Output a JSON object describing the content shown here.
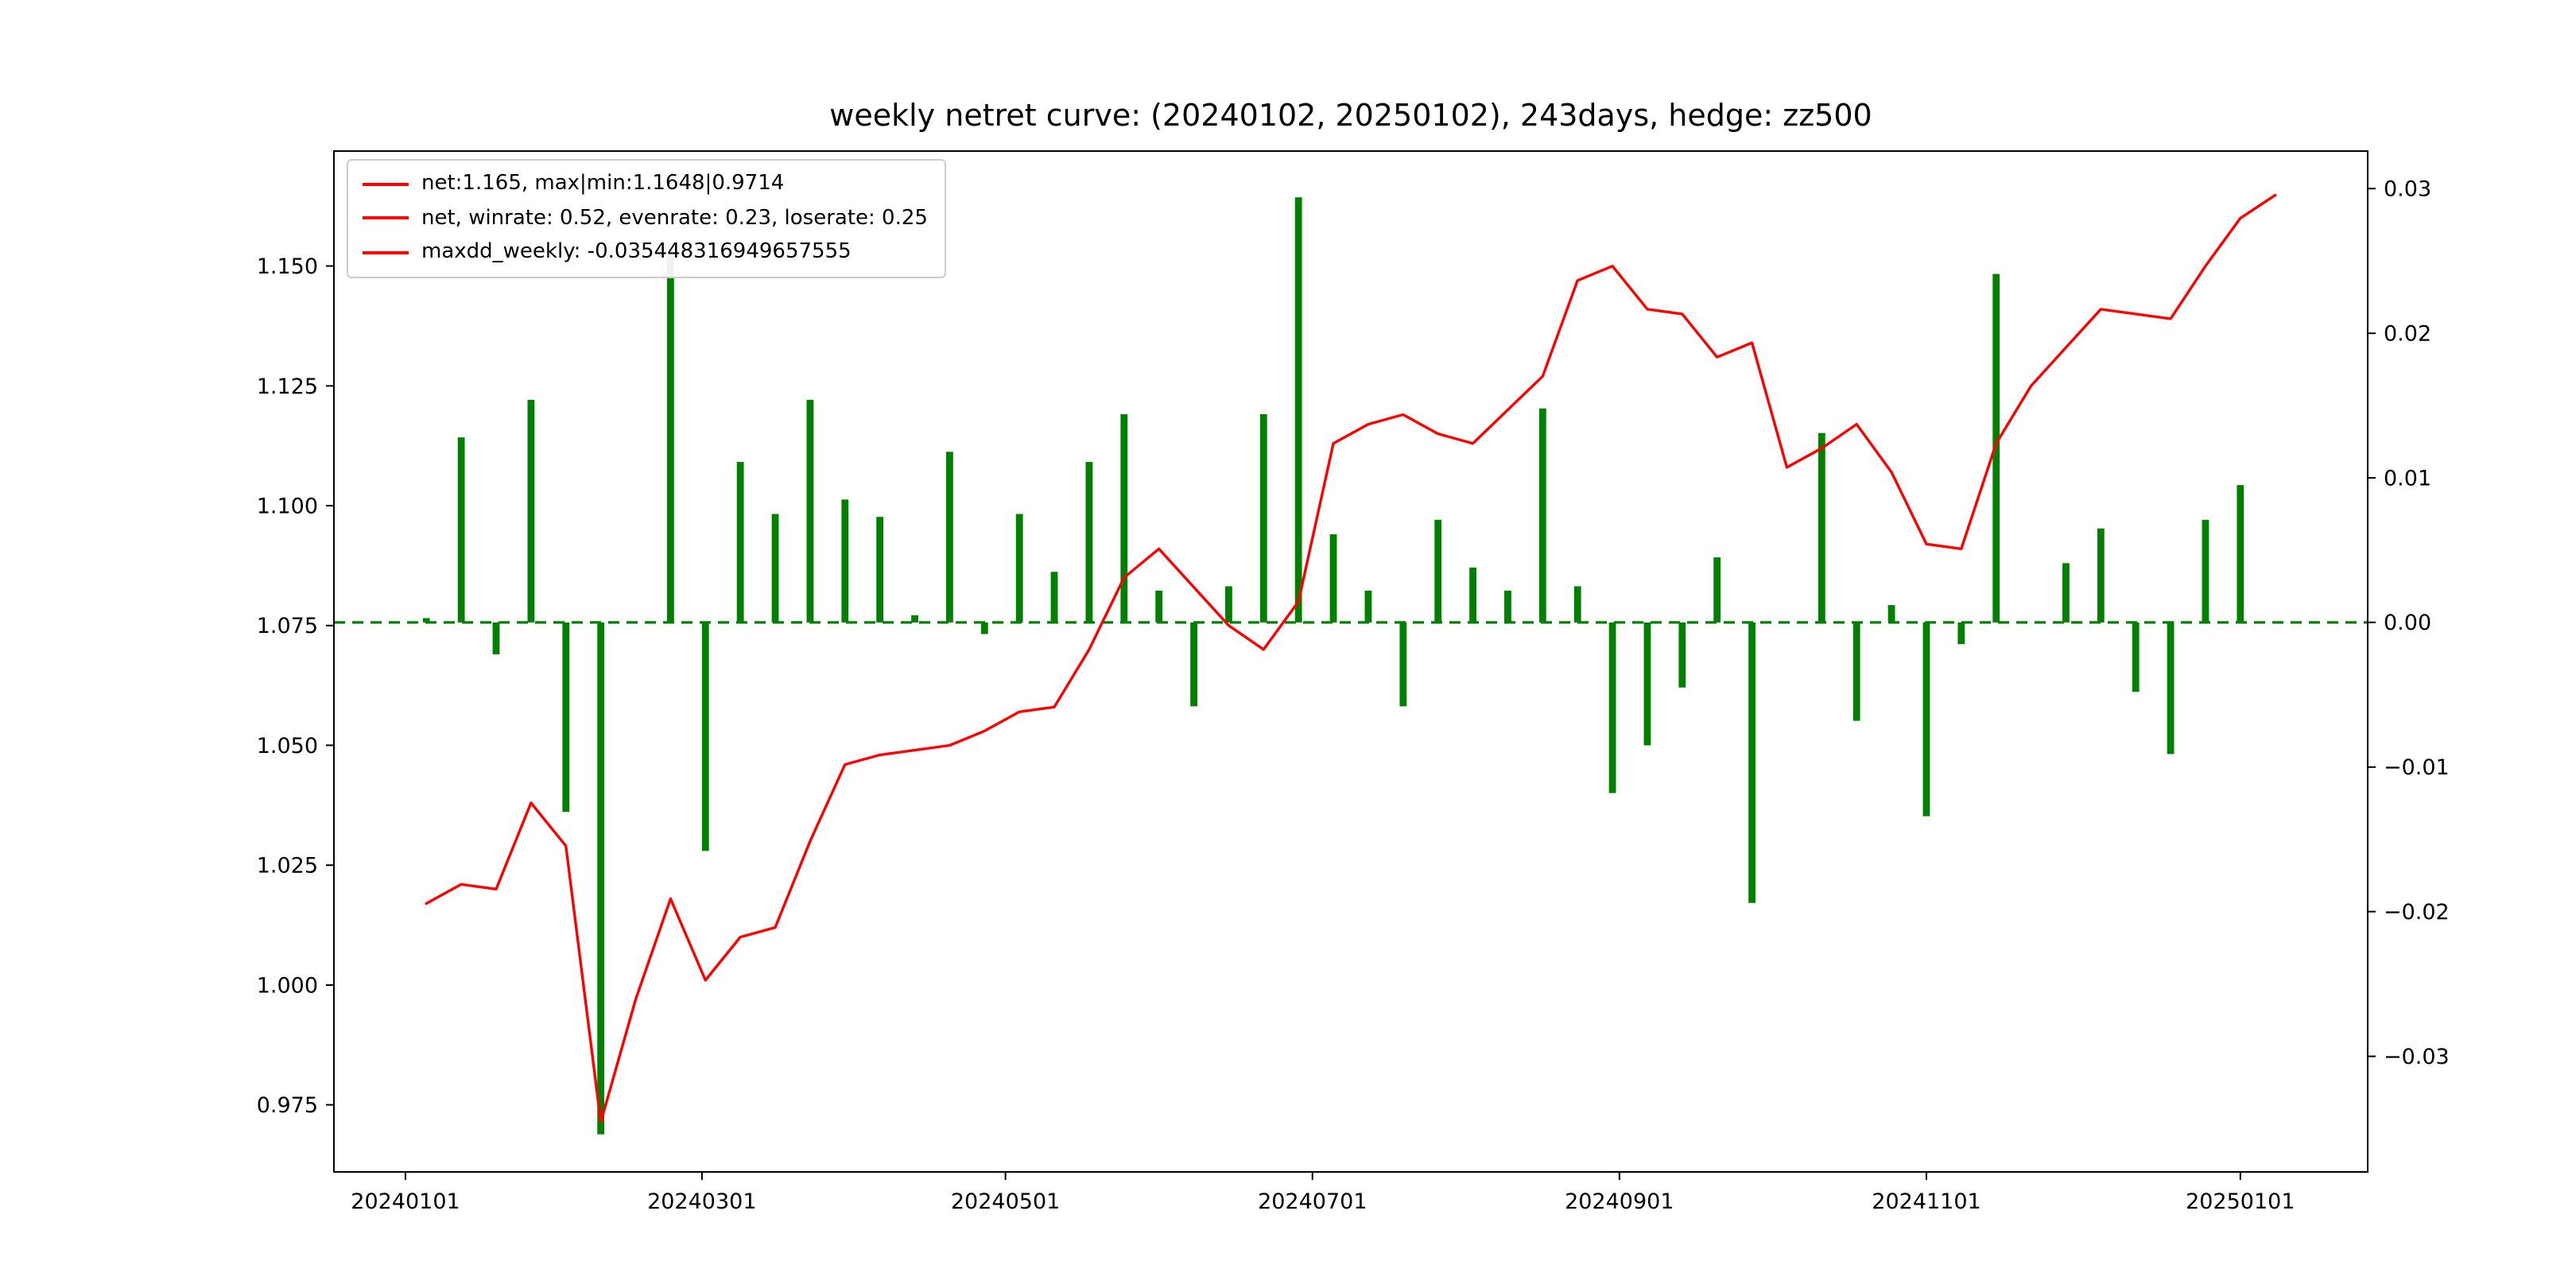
{
  "figure": {
    "title": "weekly netret curve: (20240102, 20250102), 243days, hedge: zz500",
    "background": "#ffffff"
  },
  "legend": {
    "position": "upper-left",
    "entries": [
      {
        "label": "net:1.165, max|min:1.1648|0.9714",
        "swatch_color": "#ff0000"
      },
      {
        "label": "net, winrate: 0.52, evenrate: 0.23, loserate: 0.25",
        "swatch_color": "#ff0000"
      },
      {
        "label": "maxdd_weekly: -0.035448316949657555",
        "swatch_color": "#ff0000"
      }
    ]
  },
  "chart_data": {
    "type": "combo",
    "title": "weekly netret curve: (20240102, 20250102), 243days, hedge: zz500",
    "x_unit": "week-index",
    "grid": false,
    "series": [
      {
        "name": "net",
        "type": "line",
        "axis": "left",
        "color": "#ff0000",
        "values": [
          1.017,
          1.021,
          1.02,
          1.038,
          1.029,
          0.9714,
          0.997,
          1.018,
          1.001,
          1.01,
          1.012,
          1.03,
          1.046,
          1.048,
          1.049,
          1.05,
          1.053,
          1.057,
          1.058,
          1.07,
          1.085,
          1.091,
          1.083,
          1.075,
          1.07,
          1.08,
          1.113,
          1.117,
          1.119,
          1.115,
          1.113,
          1.12,
          1.127,
          1.147,
          1.15,
          1.141,
          1.14,
          1.131,
          1.134,
          1.108,
          1.112,
          1.117,
          1.107,
          1.092,
          1.091,
          1.113,
          1.125,
          1.133,
          1.141,
          1.14,
          1.139,
          1.15,
          1.16,
          1.1648
        ]
      },
      {
        "name": "weekly_net_return",
        "type": "bar",
        "axis": "right",
        "color": "#008000",
        "values": [
          0.0003,
          0.0128,
          -0.0022,
          0.0154,
          -0.0131,
          -0.0354,
          0.0,
          0.0254,
          -0.0158,
          0.0111,
          0.0075,
          0.0154,
          0.0085,
          0.0073,
          0.0005,
          0.0118,
          -0.0008,
          0.0075,
          0.0035,
          0.0111,
          0.0144,
          0.0022,
          -0.0058,
          0.0025,
          0.0144,
          0.0294,
          0.0061,
          0.0022,
          -0.0058,
          0.0071,
          0.0038,
          0.0022,
          0.0148,
          0.0025,
          -0.0118,
          -0.0085,
          -0.0045,
          0.0045,
          -0.0194,
          0.0,
          0.0131,
          -0.0068,
          0.0012,
          -0.0134,
          -0.0015,
          0.0241,
          0.0,
          0.0041,
          0.0065,
          -0.0048,
          -0.0091,
          0.0071,
          0.0095,
          0.0
        ]
      }
    ],
    "xticks": {
      "labels": [
        "20240101",
        "20240301",
        "20240501",
        "20240701",
        "20240901",
        "20241101",
        "20250101"
      ],
      "positions": [
        -0.6,
        7.9,
        16.6,
        25.4,
        34.2,
        43.0,
        52.0
      ]
    },
    "yticks_left": {
      "labels": [
        "0.975",
        "1.000",
        "1.025",
        "1.050",
        "1.075",
        "1.100",
        "1.125",
        "1.150"
      ],
      "values": [
        0.975,
        1.0,
        1.025,
        1.05,
        1.075,
        1.1,
        1.125,
        1.15
      ]
    },
    "yticks_right": {
      "labels": [
        "−0.03",
        "−0.02",
        "−0.01",
        "0.00",
        "0.01",
        "0.02",
        "0.03"
      ],
      "values": [
        -0.03,
        -0.02,
        -0.01,
        0.0,
        0.01,
        0.02,
        0.03
      ]
    },
    "xlim": [
      -2.65,
      55.65
    ],
    "ylim_left": [
      0.961,
      1.174
    ],
    "ylim_right": [
      -0.038,
      0.0326
    ],
    "zero_line": {
      "axis": "right",
      "value": 0,
      "style": "dashed",
      "color": "#008000"
    },
    "stats": {
      "net_final": 1.165,
      "net_max": 1.1648,
      "net_min": 0.9714,
      "winrate": 0.52,
      "evenrate": 0.23,
      "loserate": 0.25,
      "maxdd_weekly": -0.035448316949657555
    }
  }
}
